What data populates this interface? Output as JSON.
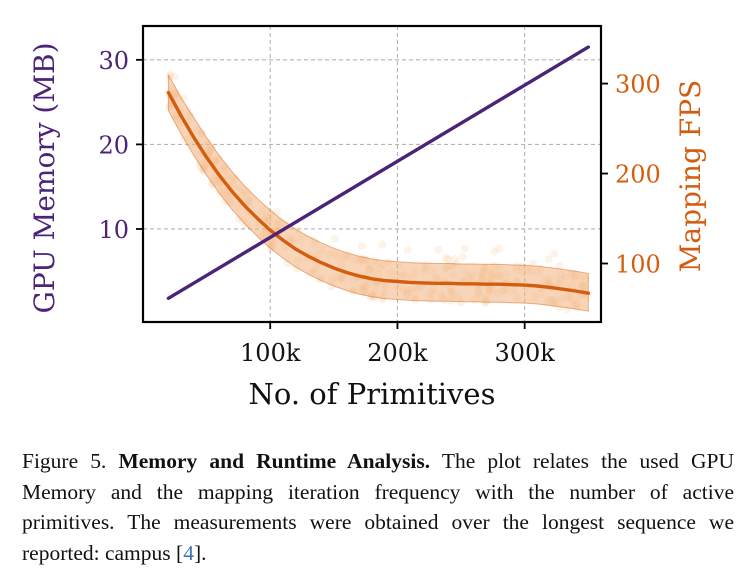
{
  "chart_data": {
    "type": "line",
    "xlabel": "No. of Primitives",
    "ylabel_left": "GPU Memory (MB)",
    "ylabel_right": "Mapping FPS",
    "xlim": [
      0,
      360000
    ],
    "ylim_left": [
      -1,
      34
    ],
    "ylim_right": [
      35,
      364
    ],
    "x_ticks": [
      100000,
      200000,
      300000
    ],
    "x_tick_labels": [
      "100k",
      "200k",
      "300k"
    ],
    "y_left_ticks": [
      10,
      20,
      30
    ],
    "y_left_tick_labels": [
      "10",
      "20",
      "30"
    ],
    "y_right_ticks": [
      100,
      200,
      300
    ],
    "y_right_tick_labels": [
      "100",
      "200",
      "300"
    ],
    "grid": true,
    "colors": {
      "memory": "#4b2378",
      "fps": "#d35d0e",
      "fps_band": "#f2b27f",
      "scatter": "#f6c79b"
    },
    "series": [
      {
        "axis": "left",
        "style": "line",
        "x": [
          20000,
          350000
        ],
        "y": [
          1.8,
          31.5
        ]
      },
      {
        "axis": "right",
        "style": "line",
        "x": [
          20000,
          30000,
          40000,
          50000,
          60000,
          70000,
          80000,
          90000,
          100000,
          110000,
          120000,
          130000,
          140000,
          150000,
          160000,
          170000,
          180000,
          190000,
          200000,
          210000,
          220000,
          230000,
          240000,
          250000,
          260000,
          270000,
          280000,
          290000,
          300000,
          310000,
          320000,
          330000,
          340000,
          350000
        ],
        "y": [
          290,
          264,
          240,
          218,
          198,
          180,
          164,
          150,
          137,
          126,
          116,
          108,
          101,
          95,
          90,
          86,
          83,
          81,
          80,
          79,
          78.5,
          78,
          78,
          77.5,
          77.5,
          77,
          77,
          76.5,
          76,
          75,
          73.5,
          71.5,
          69.5,
          67
        ]
      },
      {
        "axis": "right",
        "style": "band",
        "x": [
          20000,
          30000,
          40000,
          50000,
          60000,
          70000,
          80000,
          90000,
          100000,
          110000,
          120000,
          130000,
          140000,
          150000,
          160000,
          170000,
          180000,
          190000,
          200000,
          210000,
          220000,
          230000,
          240000,
          250000,
          260000,
          270000,
          280000,
          290000,
          300000,
          310000,
          320000,
          330000,
          340000,
          350000
        ],
        "upper": [
          310,
          284,
          262,
          240,
          220,
          202,
          186,
          172,
          159,
          148,
          138,
          130,
          123,
          117,
          112,
          108,
          105,
          103,
          102,
          101,
          100.5,
          100,
          100,
          99.5,
          99.5,
          99,
          99,
          98.5,
          98,
          97,
          95.5,
          93.5,
          91.5,
          89
        ],
        "lower": [
          270,
          244,
          220,
          198,
          178,
          160,
          144,
          130,
          117,
          106,
          96,
          88,
          81,
          75,
          70,
          66,
          63,
          61,
          60,
          59,
          58.5,
          58,
          58,
          57.5,
          57.5,
          57,
          57,
          56.5,
          56,
          55,
          53.5,
          51.5,
          49.5,
          47
        ]
      }
    ]
  },
  "caption": {
    "figure_label": "Figure 5.",
    "title": "Memory and Runtime Analysis.",
    "text": "The plot relates the used GPU Memory and the mapping iteration frequency with the number of active primitives. The measurements were obtained over the longest sequence we reported: campus [",
    "citation": "4",
    "end": "]."
  }
}
